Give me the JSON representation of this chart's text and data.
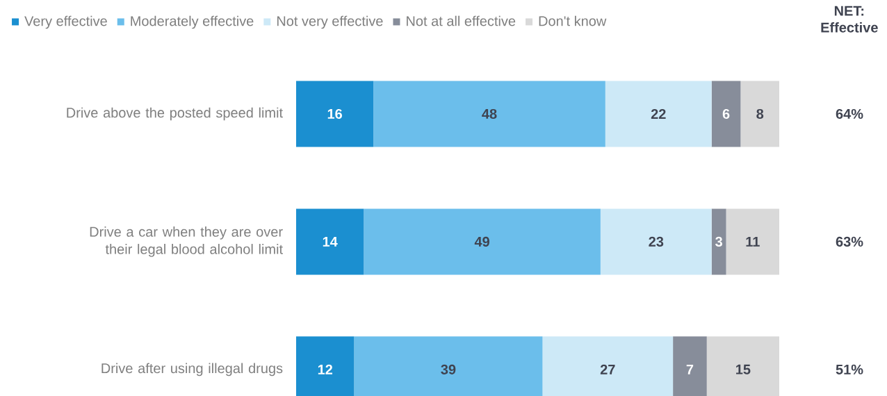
{
  "chart_data": {
    "type": "bar",
    "orientation": "horizontal",
    "stacked": true,
    "categories": [
      "Drive above the posted speed limit",
      "Drive a car when they are over their legal blood alcohol limit",
      "Drive after using illegal drugs"
    ],
    "series": [
      {
        "name": "Very effective",
        "color": "#1b8fd0",
        "values": [
          16,
          14,
          12
        ]
      },
      {
        "name": "Moderately effective",
        "color": "#6bbeeb",
        "values": [
          48,
          49,
          39
        ]
      },
      {
        "name": "Not very effective",
        "color": "#cde9f7",
        "values": [
          22,
          23,
          27
        ]
      },
      {
        "name": "Not at all effective",
        "color": "#878d9a",
        "values": [
          6,
          3,
          7
        ]
      },
      {
        "name": "Don't know",
        "color": "#d9d9d9",
        "values": [
          8,
          11,
          15
        ]
      }
    ],
    "data_labels": true,
    "legend": "top",
    "tick_labels": "y",
    "annotations": [
      "NET: Effective",
      "64%",
      "63%",
      "51%"
    ]
  }
}
